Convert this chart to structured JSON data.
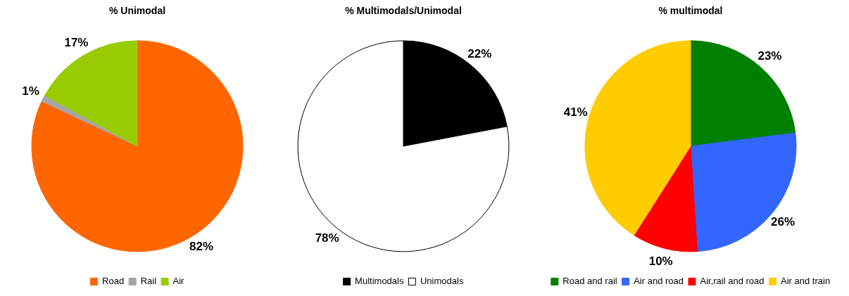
{
  "chart_data": [
    {
      "type": "pie",
      "title": "% Unimodal",
      "categories": [
        "Road",
        "Rail",
        "Air"
      ],
      "values": [
        82,
        1,
        17
      ],
      "colors": [
        "#ff6600",
        "#a6a6a6",
        "#99cc00"
      ],
      "value_labels": [
        "82%",
        "1%",
        "17%"
      ],
      "legend": "bottom"
    },
    {
      "type": "pie",
      "title": "% Multimodals/Unimodal",
      "categories": [
        "Multimodals",
        "Unimodals"
      ],
      "values": [
        22,
        78
      ],
      "colors": [
        "#000000",
        "#ffffff"
      ],
      "value_labels": [
        "22%",
        "78%"
      ],
      "legend": "bottom"
    },
    {
      "type": "pie",
      "title": "% multimodal",
      "categories": [
        "Road and rail",
        "Air and road",
        "Air,rail and road",
        "Air and train"
      ],
      "values": [
        23,
        26,
        10,
        41
      ],
      "colors": [
        "#008000",
        "#3366ff",
        "#ff0000",
        "#ffcc00"
      ],
      "value_labels": [
        "23%",
        "26%",
        "10%",
        "41%"
      ],
      "legend": "bottom"
    }
  ]
}
